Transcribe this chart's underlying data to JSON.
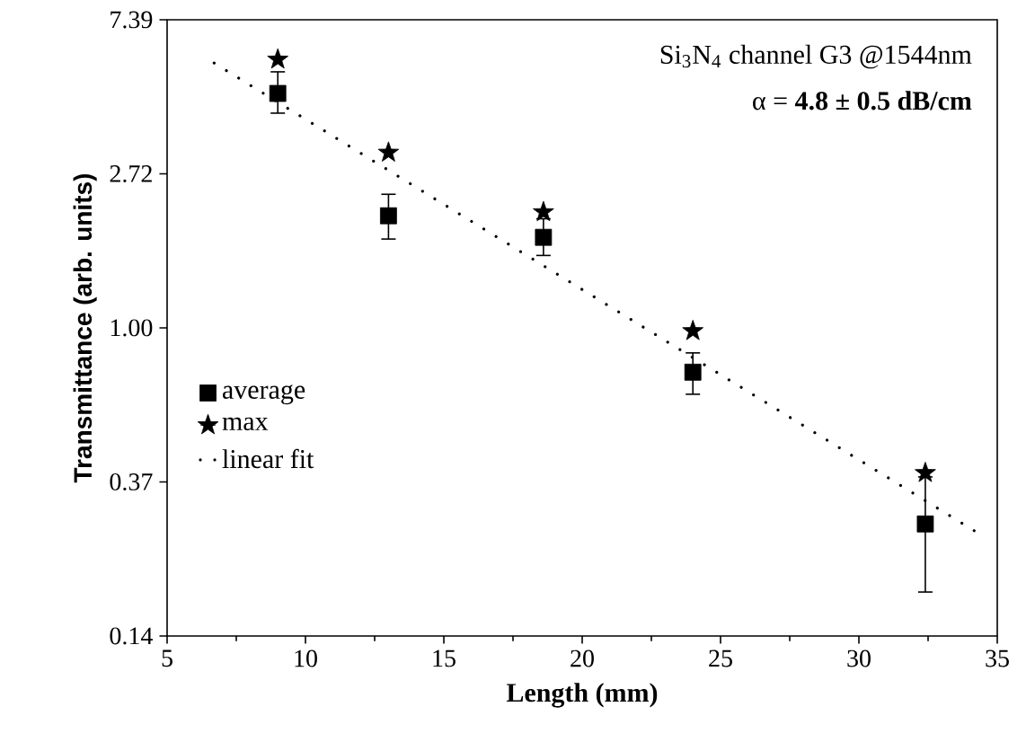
{
  "chart_data": {
    "type": "scatter",
    "xlabel": "Length (mm)",
    "ylabel": "Transmittance (arb. units)",
    "annotations": [
      "Si$_{3}$N$_{4}$ channel G3 @1544nm",
      "α = **4.8 ± 0.5 dB/cm**"
    ],
    "log": "y",
    "xlim": [
      5,
      35
    ],
    "xticks": [
      5,
      10,
      15,
      20,
      25,
      30,
      35
    ],
    "ylim": [
      0.1353,
      7.389
    ],
    "yticks": [
      {
        "value": 0.1353,
        "label": "0.14"
      },
      {
        "value": 0.3679,
        "label": "0.37"
      },
      {
        "value": 1.0,
        "label": "1.00"
      },
      {
        "value": 2.718,
        "label": "2.72"
      },
      {
        "value": 7.389,
        "label": "7.39"
      }
    ],
    "grid": false,
    "legend": "left",
    "series": [
      {
        "name": "average",
        "color": "#000000",
        "marker": "square",
        "x": [
          9.0,
          13.0,
          18.6,
          24.0,
          32.4
        ],
        "values": [
          4.58,
          2.07,
          1.8,
          0.75,
          0.28
        ],
        "errors": [
          [
            4.03,
            5.27
          ],
          [
            1.78,
            2.38
          ],
          [
            1.6,
            2.03
          ],
          [
            0.65,
            0.85
          ],
          [
            0.18,
            0.38
          ]
        ]
      },
      {
        "name": "max",
        "color": "#000000",
        "marker": "star",
        "x": [
          9.0,
          13.0,
          18.6,
          24.0,
          32.4
        ],
        "values": [
          5.71,
          3.12,
          2.12,
          0.98,
          0.39
        ]
      },
      {
        "name": "linear fit",
        "type": "line",
        "color": "#000000",
        "marker": "none",
        "line_style": "dotted",
        "x": [
          6.7,
          34.2
        ],
        "values": [
          5.58,
          0.267
        ]
      }
    ]
  }
}
